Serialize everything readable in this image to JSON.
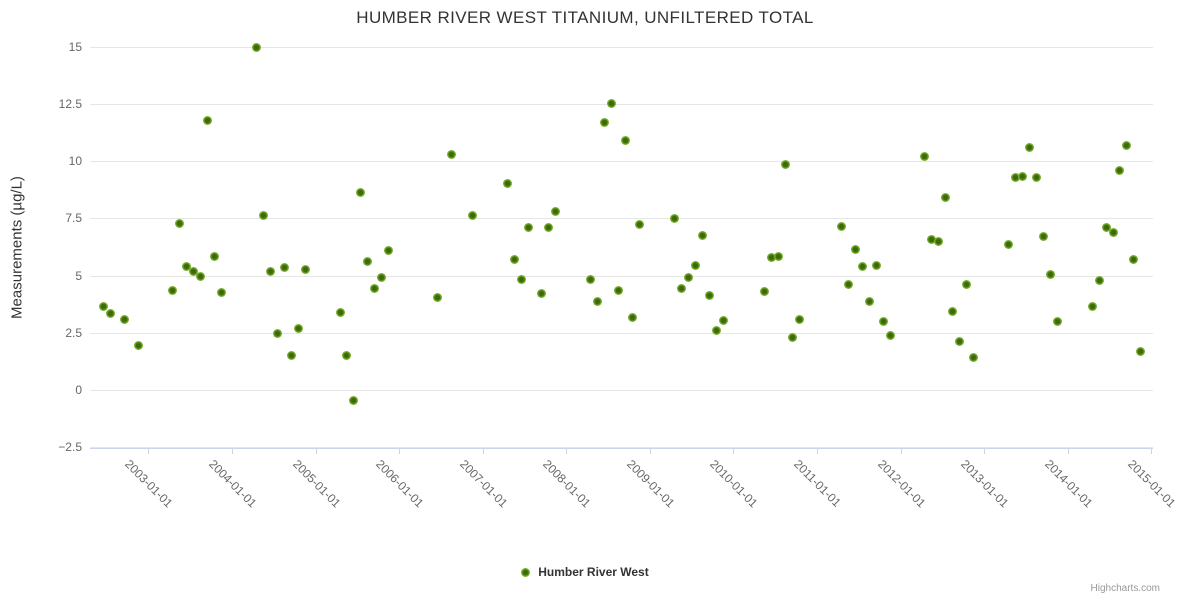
{
  "title": "HUMBER RIVER WEST TITANIUM, UNFILTERED TOTAL",
  "legend": {
    "series_label": "Humber River West"
  },
  "credits": "Highcharts.com",
  "colors": {
    "marker_outer": "#7db231",
    "marker_center": "#3c6a08",
    "gridline": "#e6e6e6",
    "axis_line": "#ccd6eb",
    "title_text": "#333333",
    "axis_label_text": "#666666",
    "credits_text": "#999999"
  },
  "chart_data": {
    "type": "scatter",
    "title": "HUMBER RIVER WEST TITANIUM, UNFILTERED TOTAL",
    "xlabel": "",
    "ylabel": "Measurements (µg/L)",
    "grid": true,
    "legend_position": "bottom-center",
    "ylim": [
      -2.5,
      15
    ],
    "yticks": [
      15,
      12.5,
      10,
      7.5,
      5,
      2.5,
      0,
      -2.5
    ],
    "ytick_labels": [
      "15",
      "12.5",
      "10",
      "7.5",
      "5",
      "2.5",
      "0",
      "−2.5"
    ],
    "xtick_labels": [
      "2003-01-01",
      "2004-01-01",
      "2005-01-01",
      "2006-01-01",
      "2007-01-01",
      "2008-01-01",
      "2009-01-01",
      "2010-01-01",
      "2011-01-01",
      "2012-01-01",
      "2013-01-01",
      "2014-01-01",
      "2015-01-01"
    ],
    "x_range_decimal_years": [
      2002.3,
      2015.02
    ],
    "series": [
      {
        "name": "Humber River West",
        "color": "#7db231",
        "points": [
          [
            "2002-06",
            3.65
          ],
          [
            "2002-07",
            3.35
          ],
          [
            "2002-09",
            3.1
          ],
          [
            "2002-11",
            1.95
          ],
          [
            "2003-04",
            4.35
          ],
          [
            "2003-05",
            7.3
          ],
          [
            "2003-06",
            5.4
          ],
          [
            "2003-07",
            5.2
          ],
          [
            "2003-08",
            4.95
          ],
          [
            "2003-09",
            11.8
          ],
          [
            "2003-10",
            5.85
          ],
          [
            "2003-11",
            4.25
          ],
          [
            "2004-04",
            15.0
          ],
          [
            "2004-05",
            7.65
          ],
          [
            "2004-06",
            5.2
          ],
          [
            "2004-07",
            2.45
          ],
          [
            "2004-08",
            5.35
          ],
          [
            "2004-09",
            1.5
          ],
          [
            "2004-10",
            2.7
          ],
          [
            "2004-11",
            5.25
          ],
          [
            "2005-04",
            3.4
          ],
          [
            "2005-05",
            1.5
          ],
          [
            "2005-06",
            -0.45
          ],
          [
            "2005-07",
            8.65
          ],
          [
            "2005-08",
            5.6
          ],
          [
            "2005-09",
            4.45
          ],
          [
            "2005-10",
            4.9
          ],
          [
            "2005-11",
            6.1
          ],
          [
            "2006-06",
            4.05
          ],
          [
            "2006-08",
            10.3
          ],
          [
            "2006-11",
            7.65
          ],
          [
            "2007-04",
            9.05
          ],
          [
            "2007-05",
            5.7
          ],
          [
            "2007-06",
            4.85
          ],
          [
            "2007-07",
            7.1
          ],
          [
            "2007-09",
            4.2
          ],
          [
            "2007-10",
            7.1
          ],
          [
            "2007-11",
            7.8
          ],
          [
            "2008-04",
            4.85
          ],
          [
            "2008-05",
            3.85
          ],
          [
            "2008-06",
            11.7
          ],
          [
            "2008-07",
            12.55
          ],
          [
            "2008-08",
            4.35
          ],
          [
            "2008-09",
            10.9
          ],
          [
            "2008-10",
            3.15
          ],
          [
            "2008-11",
            7.25
          ],
          [
            "2009-04",
            7.5
          ],
          [
            "2009-05",
            4.45
          ],
          [
            "2009-06",
            4.9
          ],
          [
            "2009-07",
            5.45
          ],
          [
            "2009-08",
            6.75
          ],
          [
            "2009-09",
            4.15
          ],
          [
            "2009-10",
            2.6
          ],
          [
            "2009-11",
            3.05
          ],
          [
            "2010-05",
            4.3
          ],
          [
            "2010-06",
            5.8
          ],
          [
            "2010-07",
            5.85
          ],
          [
            "2010-08",
            9.85
          ],
          [
            "2010-09",
            2.3
          ],
          [
            "2010-10",
            3.1
          ],
          [
            "2011-04",
            7.15
          ],
          [
            "2011-05",
            4.6
          ],
          [
            "2011-06",
            6.15
          ],
          [
            "2011-07",
            5.4
          ],
          [
            "2011-08",
            3.85
          ],
          [
            "2011-09",
            5.45
          ],
          [
            "2011-10",
            3.0
          ],
          [
            "2011-11",
            2.4
          ],
          [
            "2012-04",
            10.2
          ],
          [
            "2012-05",
            6.6
          ],
          [
            "2012-06",
            6.5
          ],
          [
            "2012-07",
            8.4
          ],
          [
            "2012-08",
            3.45
          ],
          [
            "2012-09",
            2.1
          ],
          [
            "2012-10",
            4.6
          ],
          [
            "2012-11",
            1.4
          ],
          [
            "2013-04",
            6.35
          ],
          [
            "2013-05",
            9.3
          ],
          [
            "2013-06",
            9.35
          ],
          [
            "2013-07",
            10.6
          ],
          [
            "2013-08",
            9.3
          ],
          [
            "2013-09",
            6.7
          ],
          [
            "2013-10",
            5.05
          ],
          [
            "2013-11",
            3.0
          ],
          [
            "2014-04",
            3.65
          ],
          [
            "2014-05",
            4.8
          ],
          [
            "2014-06",
            7.1
          ],
          [
            "2014-07",
            6.9
          ],
          [
            "2014-08",
            9.6
          ],
          [
            "2014-09",
            10.7
          ],
          [
            "2014-10",
            5.7
          ],
          [
            "2014-11",
            1.7
          ]
        ]
      }
    ]
  }
}
